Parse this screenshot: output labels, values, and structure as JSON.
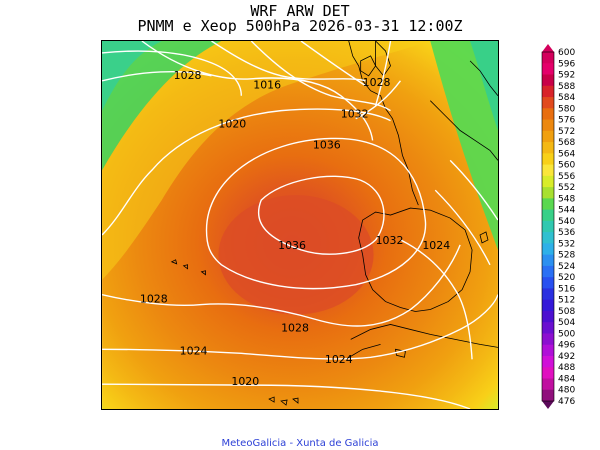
{
  "header": {
    "title_line1": "WRF ARW DET",
    "title_line2": "PNMM e Xeop 500hPa 2026-03-31 12:00Z"
  },
  "footer": {
    "credit": "MeteoGalicia - Xunta de Galicia"
  },
  "colors": {
    "land_outline": "#000000",
    "isobar": "#ffffff",
    "credit": "#2b3fd6"
  },
  "isobar_labels": [
    {
      "text": "1028"
    },
    {
      "text": "1016"
    },
    {
      "text": "1020"
    },
    {
      "text": "1028"
    },
    {
      "text": "1032"
    },
    {
      "text": "1036"
    },
    {
      "text": "1036"
    },
    {
      "text": "1032"
    },
    {
      "text": "1024"
    },
    {
      "text": "1028"
    },
    {
      "text": "1028"
    },
    {
      "text": "1024"
    },
    {
      "text": "1024"
    },
    {
      "text": "1020"
    }
  ],
  "legend": {
    "levels": [
      "600",
      "596",
      "592",
      "588",
      "584",
      "580",
      "576",
      "572",
      "568",
      "564",
      "560",
      "556",
      "552",
      "548",
      "544",
      "540",
      "536",
      "532",
      "528",
      "524",
      "520",
      "516",
      "512",
      "508",
      "504",
      "500",
      "496",
      "492",
      "488",
      "484",
      "480",
      "476"
    ],
    "colors": [
      "#d4005c",
      "#e4006a",
      "#c80048",
      "#d8232a",
      "#e14a1e",
      "#e86e10",
      "#ec8810",
      "#f0a010",
      "#f4b814",
      "#f8d018",
      "#fae63a",
      "#d8ec2a",
      "#a8e030",
      "#5ad850",
      "#38d088",
      "#30c8b0",
      "#30c0d0",
      "#2eb0e8",
      "#2c90f0",
      "#2a70f4",
      "#2850f0",
      "#2a30e0",
      "#3418d8",
      "#4c10d0",
      "#6a10d0",
      "#8c10d0",
      "#b010d8",
      "#d010d8",
      "#e010c0",
      "#c010a0",
      "#90107c",
      "#5c0a5a"
    ]
  }
}
